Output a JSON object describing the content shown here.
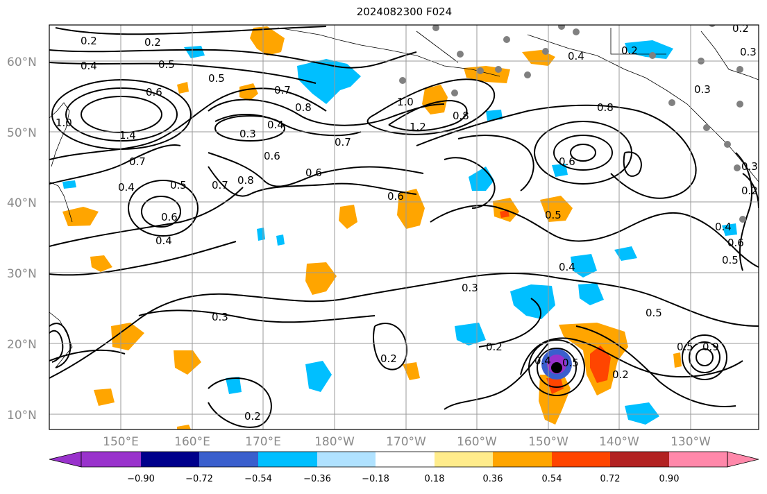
{
  "title": "2024082300 F024",
  "lat_labels": [
    "60°N",
    "50°N",
    "40°N",
    "30°N",
    "20°N",
    "10°N"
  ],
  "lon_labels": [
    "150°E",
    "160°E",
    "170°E",
    "180°W",
    "170°W",
    "160°W",
    "150°W",
    "140°W",
    "130°W"
  ],
  "colorbar": {
    "tick_labels": [
      "−0.90",
      "−0.72",
      "−0.54",
      "−0.36",
      "−0.18",
      "0.18",
      "0.36",
      "0.54",
      "0.72",
      "0.90"
    ],
    "colors": [
      "#9932cc",
      "#00008b",
      "#3a5fcd",
      "#00bfff",
      "#b0e2ff",
      "#ffffff",
      "#ffec8b",
      "#ffa500",
      "#ff4500",
      "#b22222",
      "#ff88aa"
    ]
  },
  "contour_labels": [
    "0.2",
    "0.2",
    "0.2",
    "0.4",
    "0.5",
    "0.4",
    "0.7",
    "0.6",
    "0.5",
    "0.8",
    "0.4",
    "0.3",
    "0.3",
    "1.4",
    "0.7",
    "0.6",
    "0.5",
    "0.6",
    "0.4",
    "0.4",
    "0.7",
    "0.8",
    "0.7",
    "1.0",
    "1.2",
    "0.8",
    "0.8",
    "0.6",
    "0.6",
    "0.6",
    "0.5",
    "0.4",
    "0.3",
    "0.5",
    "0.3",
    "0.2",
    "0.2",
    "0.2",
    "0.5",
    "0.2",
    "0.4",
    "0.3",
    "0.2",
    "0.3",
    "0.4",
    "0.6",
    "0.5",
    "0.9",
    "0.5",
    "0.2",
    "1.0"
  ]
}
